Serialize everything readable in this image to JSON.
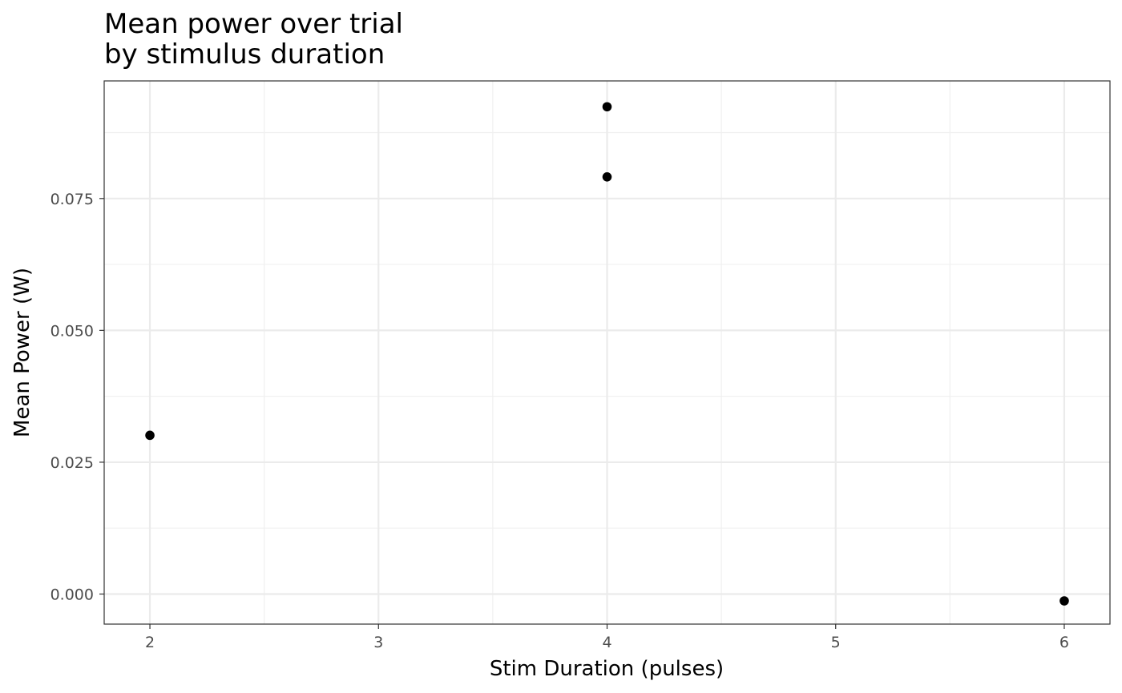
{
  "chart_data": {
    "type": "scatter",
    "title": "Mean power over trial",
    "subtitle": "by stimulus duration",
    "xlabel": "Stim Duration (pulses)",
    "ylabel": "Mean Power (W)",
    "xlim": [
      1.8,
      6.2
    ],
    "ylim": [
      -0.0057,
      0.0973
    ],
    "x_ticks": [
      2,
      3,
      4,
      5,
      6
    ],
    "x_tick_labels": [
      "2",
      "3",
      "4",
      "5",
      "6"
    ],
    "y_ticks": [
      0.0,
      0.025,
      0.05,
      0.075
    ],
    "y_tick_labels": [
      "0.000",
      "0.025",
      "0.050",
      "0.075"
    ],
    "grid": true,
    "legend": "none",
    "point_color": "#000000",
    "points": [
      {
        "x": 2,
        "y": 0.0301
      },
      {
        "x": 4,
        "y": 0.0924
      },
      {
        "x": 4,
        "y": 0.0791
      },
      {
        "x": 6,
        "y": -0.0013
      }
    ]
  }
}
